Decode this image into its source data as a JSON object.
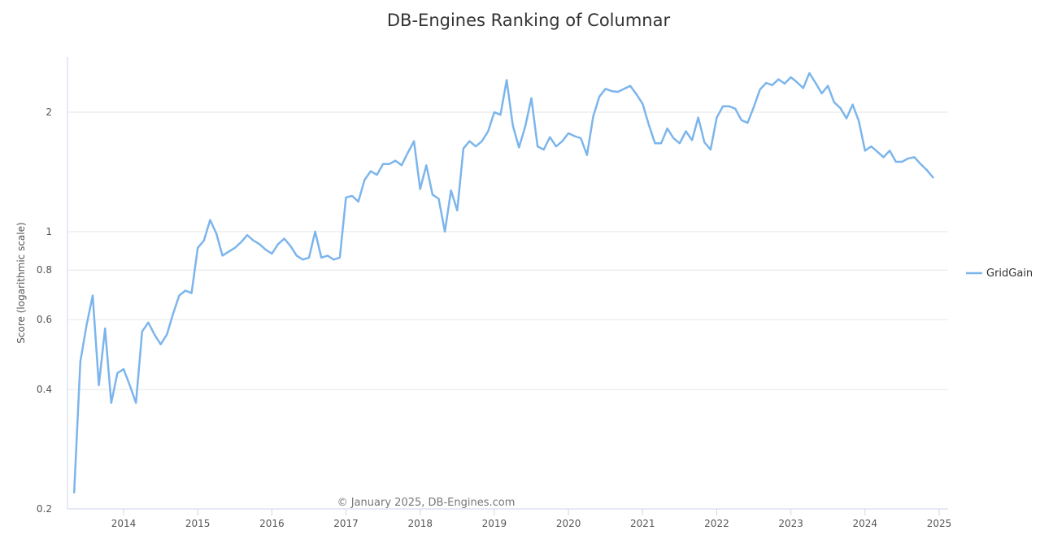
{
  "chart_data": {
    "type": "line",
    "title": "DB-Engines Ranking of Columnar",
    "ylabel": "Score (logarithmic scale)",
    "xlabel": "",
    "y_scale": "log",
    "ylim": [
      0.2,
      3.0
    ],
    "xlim": [
      "2013-04",
      "2025-02"
    ],
    "y_ticks": [
      0.2,
      0.4,
      0.6,
      0.8,
      1,
      2
    ],
    "y_tick_labels": [
      "0.2",
      "0.4",
      "0.6",
      "0.8",
      "1",
      "2"
    ],
    "x_ticks": [
      "2014-01",
      "2015-01",
      "2016-01",
      "2017-01",
      "2018-01",
      "2019-01",
      "2020-01",
      "2021-01",
      "2022-01",
      "2023-01",
      "2024-01",
      "2025-01"
    ],
    "x_tick_labels": [
      "2014",
      "2015",
      "2016",
      "2017",
      "2018",
      "2019",
      "2020",
      "2021",
      "2022",
      "2023",
      "2024",
      "2025"
    ],
    "grid": true,
    "legend_position": "right",
    "credit": "© January 2025, DB-Engines.com",
    "colors": {
      "series": "#7cb5ec",
      "grid": "#e6e6e6",
      "axis": "#ccd6eb"
    },
    "series": [
      {
        "name": "GridGain",
        "x_start": "2013-05",
        "values": [
          0.22,
          0.47,
          0.58,
          0.69,
          0.41,
          0.57,
          0.37,
          0.44,
          0.45,
          0.41,
          0.37,
          0.56,
          0.59,
          0.55,
          0.52,
          0.55,
          0.62,
          0.69,
          0.71,
          0.7,
          0.91,
          0.95,
          1.07,
          0.99,
          0.87,
          0.89,
          0.91,
          0.94,
          0.98,
          0.95,
          0.93,
          0.9,
          0.88,
          0.93,
          0.96,
          0.92,
          0.87,
          0.85,
          0.86,
          1.0,
          0.86,
          0.87,
          0.85,
          0.86,
          1.22,
          1.23,
          1.19,
          1.35,
          1.42,
          1.39,
          1.48,
          1.48,
          1.51,
          1.47,
          1.58,
          1.69,
          1.28,
          1.47,
          1.24,
          1.21,
          1.0,
          1.27,
          1.13,
          1.62,
          1.69,
          1.64,
          1.69,
          1.79,
          2.0,
          1.97,
          2.41,
          1.85,
          1.63,
          1.84,
          2.17,
          1.64,
          1.61,
          1.73,
          1.64,
          1.69,
          1.77,
          1.74,
          1.72,
          1.56,
          1.95,
          2.19,
          2.29,
          2.26,
          2.25,
          2.29,
          2.33,
          2.22,
          2.1,
          1.86,
          1.67,
          1.67,
          1.82,
          1.72,
          1.67,
          1.79,
          1.7,
          1.94,
          1.68,
          1.61,
          1.94,
          2.07,
          2.07,
          2.04,
          1.91,
          1.88,
          2.06,
          2.28,
          2.37,
          2.34,
          2.42,
          2.36,
          2.45,
          2.38,
          2.3,
          2.51,
          2.37,
          2.23,
          2.33,
          2.12,
          2.05,
          1.93,
          2.09,
          1.9,
          1.6,
          1.64,
          1.59,
          1.54,
          1.6,
          1.5,
          1.5,
          1.53,
          1.54,
          1.48,
          1.43,
          1.37
        ]
      }
    ]
  }
}
